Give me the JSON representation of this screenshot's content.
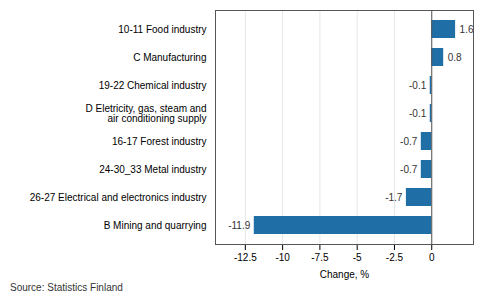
{
  "chart_data": {
    "type": "bar",
    "orientation": "horizontal",
    "categories": [
      "B Mining and quarrying",
      "26-27 Electrical and electronics industry",
      "24-30_33 Metal industry",
      "16-17 Forest industry",
      "D Eletricity, gas, steam and\nair conditioning supply",
      "19-22 Chemical industry",
      "C Manufacturing",
      "10-11 Food industry"
    ],
    "values": [
      -11.9,
      -1.7,
      -0.7,
      -0.7,
      -0.1,
      -0.1,
      0.8,
      1.6
    ],
    "color": "#1F6EA6",
    "xlabel": "Change, %",
    "xlim": [
      -14.5,
      2.8
    ],
    "xticks": [
      -12.5,
      -10,
      -7.5,
      -5,
      -2.5,
      0
    ],
    "grid": true,
    "data_labels": true,
    "source": "Source: Statistics Finland"
  }
}
